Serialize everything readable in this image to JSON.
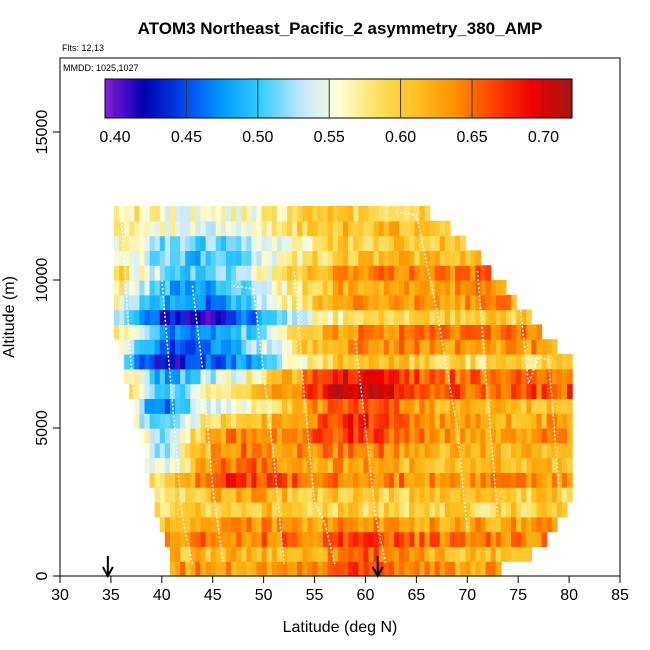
{
  "chart_data": {
    "type": "heatmap",
    "title": "ATOM3 Northeast_Pacific_2 asymmetry_380_AMP",
    "flights_label": "Flts: 12,13",
    "dates_label": "MMDD: 1025,1027",
    "xlabel": "Latitude (deg N)",
    "ylabel": "Altitude (m)",
    "xlim": [
      30,
      85
    ],
    "ylim": [
      0,
      17500
    ],
    "x_ticks": [
      30,
      35,
      40,
      45,
      50,
      55,
      60,
      65,
      70,
      75,
      80,
      85
    ],
    "x_tick_labels": [
      "30",
      "35",
      "40",
      "45",
      "50",
      "55",
      "60",
      "65",
      "70",
      "75",
      "80",
      "85"
    ],
    "y_ticks": [
      0,
      5000,
      10000,
      15000
    ],
    "y_tick_labels": [
      "0",
      "5000",
      "10000",
      "15000"
    ],
    "colorbar": {
      "range": [
        0.393,
        0.72
      ],
      "ticks": [
        0.4,
        0.45,
        0.5,
        0.55,
        0.6,
        0.65,
        0.7
      ],
      "tick_labels": [
        "0.40",
        "0.45",
        "0.50",
        "0.55",
        "0.60",
        "0.65",
        "0.70"
      ],
      "colors": [
        "#8b1ae6",
        "#0000b0",
        "#0044ee",
        "#0099ff",
        "#33ccff",
        "#bfe6ff",
        "#ffffd8",
        "#ffe060",
        "#ffc020",
        "#ff9000",
        "#ff4000",
        "#ee0000",
        "#a01818"
      ]
    },
    "domain_outline": {
      "lat": [
        35.3,
        36.0,
        37.0,
        38.0,
        39.0,
        40.0,
        41.0,
        42.0,
        43.0,
        44.0,
        45.0,
        46.0,
        47.0,
        48.0,
        49.0,
        50.0,
        51.0,
        52.0,
        53.0,
        54.0,
        55.0,
        56.0,
        57.0,
        58.0,
        59.0,
        60.0,
        61.0,
        62.0,
        63.0,
        64.0,
        65.0,
        66.0,
        67.0,
        68.0,
        69.0,
        70.0,
        71.0,
        72.0,
        73.0,
        74.0,
        75.0,
        76.0,
        77.0,
        78.0,
        79.0,
        80.0,
        80.3
      ],
      "top_alt": [
        12500,
        12400,
        12300,
        12300,
        12300,
        12300,
        12300,
        12300,
        12300,
        12300,
        12300,
        12300,
        12300,
        12300,
        12300,
        12300,
        12300,
        12300,
        12300,
        12300,
        12300,
        12300,
        12300,
        12300,
        12300,
        12300,
        12300,
        12300,
        12300,
        12400,
        12400,
        12300,
        12200,
        11900,
        11600,
        11200,
        10800,
        10400,
        10000,
        9600,
        9200,
        8800,
        8400,
        8000,
        7700,
        7500,
        7400
      ],
      "bottom_alt": [
        8500,
        7500,
        6000,
        4500,
        3000,
        1500,
        200,
        0,
        0,
        0,
        0,
        0,
        0,
        0,
        0,
        0,
        0,
        0,
        0,
        0,
        0,
        0,
        0,
        0,
        0,
        0,
        0,
        0,
        0,
        0,
        0,
        0,
        0,
        0,
        0,
        0,
        0,
        100,
        200,
        300,
        400,
        600,
        900,
        1300,
        1800,
        2500,
        3500
      ]
    },
    "launch_markers_lat": [
      34.7,
      61.2
    ],
    "cell_size": {
      "lat_deg": 0.5,
      "alt_m": 500
    }
  }
}
